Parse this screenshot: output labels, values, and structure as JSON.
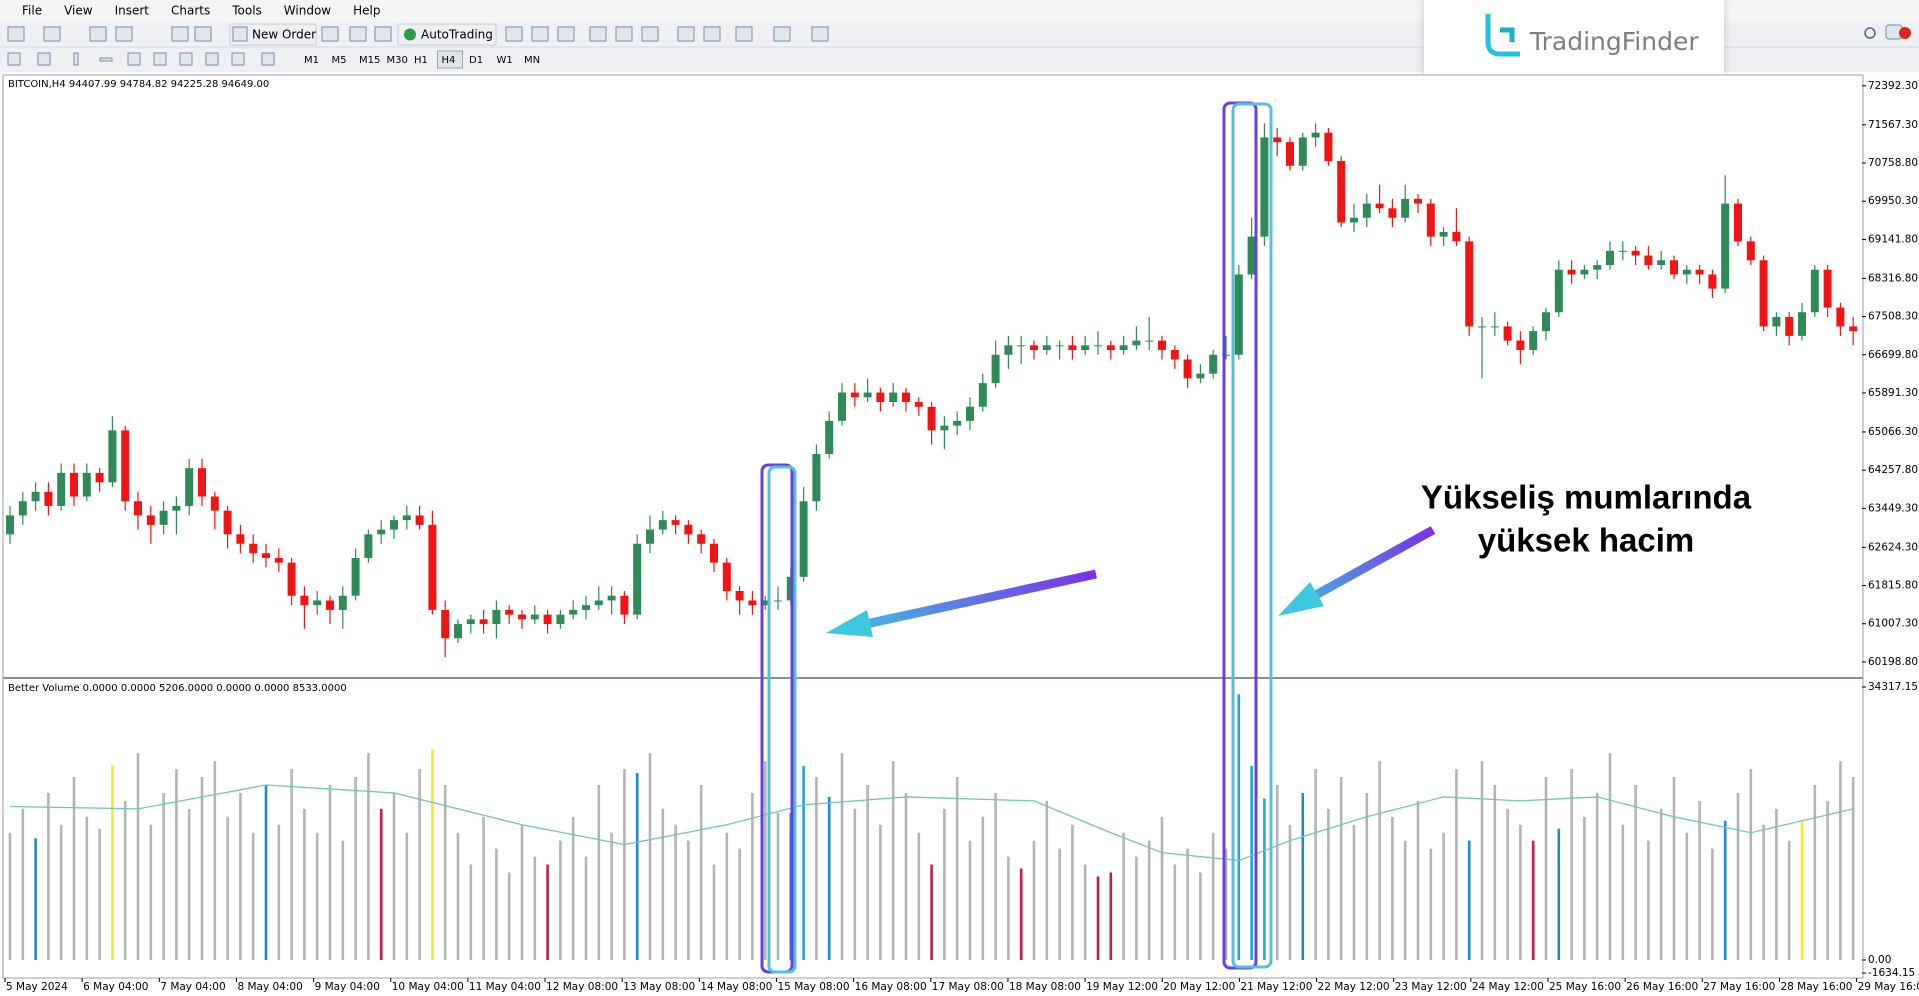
{
  "menu": [
    "File",
    "View",
    "Insert",
    "Charts",
    "Tools",
    "Window",
    "Help"
  ],
  "toolbar": {
    "new_order": "New Order",
    "auto_trading": "AutoTrading"
  },
  "timeframes": [
    "M1",
    "M5",
    "M15",
    "M30",
    "H1",
    "H4",
    "D1",
    "W1",
    "MN"
  ],
  "watermark": "TradingFinder",
  "chart_data": {
    "type": "candlestick",
    "title": "BITCOIN,H4  94407.99 94784.82 94225.28 94649.00",
    "up_color": "#2f8a57",
    "down_color": "#f01414",
    "ylim": [
      59880,
      72600
    ],
    "yticks": [
      {
        "value": 72392.3,
        "label": "72392.30"
      },
      {
        "value": 71567.3,
        "label": "71567.30"
      },
      {
        "value": 70758.8,
        "label": "70758.80"
      },
      {
        "value": 69950.3,
        "label": "69950.30"
      },
      {
        "value": 69141.8,
        "label": "69141.80"
      },
      {
        "value": 68316.8,
        "label": "68316.80"
      },
      {
        "value": 67508.3,
        "label": "67508.30"
      },
      {
        "value": 66699.8,
        "label": "66699.80"
      },
      {
        "value": 65891.3,
        "label": "65891.30"
      },
      {
        "value": 65066.3,
        "label": "65066.30"
      },
      {
        "value": 64257.8,
        "label": "64257.80"
      },
      {
        "value": 63449.3,
        "label": "63449.30"
      },
      {
        "value": 62624.3,
        "label": "62624.30"
      },
      {
        "value": 61815.8,
        "label": "61815.80"
      },
      {
        "value": 61007.3,
        "label": "61007.30"
      },
      {
        "value": 60198.8,
        "label": "60198.80"
      }
    ],
    "x_labels": [
      "5 May 2024",
      "6 May 04:00",
      "7 May 04:00",
      "8 May 04:00",
      "9 May 04:00",
      "10 May 04:00",
      "11 May 04:00",
      "12 May 08:00",
      "13 May 08:00",
      "14 May 08:00",
      "15 May 08:00",
      "16 May 08:00",
      "17 May 08:00",
      "18 May 08:00",
      "19 May 12:00",
      "20 May 12:00",
      "21 May 12:00",
      "22 May 12:00",
      "23 May 12:00",
      "24 May 12:00",
      "25 May 16:00",
      "26 May 16:00",
      "27 May 16:00",
      "28 May 16:00",
      "29 May 16:00"
    ],
    "candles": [
      [
        62900,
        63500,
        62700,
        63300
      ],
      [
        63300,
        63800,
        63100,
        63600
      ],
      [
        63600,
        64000,
        63400,
        63800
      ],
      [
        63800,
        64000,
        63300,
        63500
      ],
      [
        63500,
        64400,
        63400,
        64200
      ],
      [
        64200,
        64400,
        63500,
        63700
      ],
      [
        63700,
        64400,
        63600,
        64200
      ],
      [
        64200,
        64300,
        63800,
        64000
      ],
      [
        64000,
        65400,
        63900,
        65100
      ],
      [
        65100,
        65200,
        63400,
        63600
      ],
      [
        63600,
        63800,
        63000,
        63300
      ],
      [
        63300,
        63500,
        62700,
        63100
      ],
      [
        63100,
        63600,
        62900,
        63400
      ],
      [
        63400,
        63700,
        62900,
        63500
      ],
      [
        63500,
        64500,
        63300,
        64300
      ],
      [
        64300,
        64500,
        63500,
        63700
      ],
      [
        63700,
        63800,
        63000,
        63400
      ],
      [
        63400,
        63500,
        62600,
        62900
      ],
      [
        62900,
        63100,
        62500,
        62700
      ],
      [
        62700,
        62900,
        62300,
        62500
      ],
      [
        62500,
        62700,
        62200,
        62400
      ],
      [
        62400,
        62600,
        62100,
        62300
      ],
      [
        62300,
        62400,
        61400,
        61600
      ],
      [
        61600,
        61800,
        60900,
        61400
      ],
      [
        61400,
        61700,
        61200,
        61500
      ],
      [
        61500,
        61600,
        61000,
        61300
      ],
      [
        61300,
        61800,
        60900,
        61600
      ],
      [
        61600,
        62600,
        61500,
        62400
      ],
      [
        62400,
        63000,
        62300,
        62900
      ],
      [
        62900,
        63200,
        62700,
        63000
      ],
      [
        63000,
        63300,
        62800,
        63200
      ],
      [
        63200,
        63500,
        63000,
        63300
      ],
      [
        63300,
        63500,
        63000,
        63100
      ],
      [
        63100,
        63400,
        61200,
        61300
      ],
      [
        61300,
        61500,
        60300,
        60700
      ],
      [
        60700,
        61100,
        60600,
        61000
      ],
      [
        61000,
        61200,
        60800,
        61100
      ],
      [
        61100,
        61300,
        60800,
        61000
      ],
      [
        61000,
        61500,
        60700,
        61300
      ],
      [
        61300,
        61400,
        61000,
        61200
      ],
      [
        61200,
        61300,
        60900,
        61100
      ],
      [
        61100,
        61400,
        61000,
        61200
      ],
      [
        61200,
        61300,
        60800,
        61000
      ],
      [
        61000,
        61300,
        60900,
        61200
      ],
      [
        61200,
        61500,
        61100,
        61300
      ],
      [
        61300,
        61600,
        61100,
        61400
      ],
      [
        61400,
        61800,
        61300,
        61500
      ],
      [
        61500,
        61800,
        61200,
        61600
      ],
      [
        61600,
        61700,
        61000,
        61200
      ],
      [
        61200,
        62900,
        61100,
        62700
      ],
      [
        62700,
        63300,
        62500,
        63000
      ],
      [
        63000,
        63400,
        62900,
        63200
      ],
      [
        63200,
        63300,
        62900,
        63100
      ],
      [
        63100,
        63200,
        62700,
        62900
      ],
      [
        62900,
        63000,
        62500,
        62700
      ],
      [
        62700,
        62800,
        62100,
        62300
      ],
      [
        62300,
        62400,
        61500,
        61700
      ],
      [
        61700,
        61800,
        61200,
        61500
      ],
      [
        61500,
        61700,
        61200,
        61400
      ],
      [
        61400,
        61600,
        61300,
        61500
      ],
      [
        61500,
        61800,
        61300,
        61500
      ],
      [
        61500,
        62200,
        61400,
        62000
      ],
      [
        62000,
        63900,
        61900,
        63600
      ],
      [
        63600,
        64800,
        63400,
        64600
      ],
      [
        64600,
        65500,
        64500,
        65300
      ],
      [
        65300,
        66100,
        65200,
        65900
      ],
      [
        65900,
        66100,
        65600,
        65800
      ],
      [
        65800,
        66200,
        65700,
        65900
      ],
      [
        65900,
        66000,
        65500,
        65700
      ],
      [
        65700,
        66100,
        65600,
        65900
      ],
      [
        65900,
        66000,
        65500,
        65700
      ],
      [
        65700,
        65800,
        65400,
        65600
      ],
      [
        65600,
        65700,
        64800,
        65100
      ],
      [
        65100,
        65400,
        64700,
        65200
      ],
      [
        65200,
        65500,
        65000,
        65300
      ],
      [
        65300,
        65800,
        65100,
        65600
      ],
      [
        65600,
        66300,
        65500,
        66100
      ],
      [
        66100,
        67000,
        66000,
        66700
      ],
      [
        66700,
        67100,
        66400,
        66900
      ],
      [
        66900,
        67100,
        66500,
        66900
      ],
      [
        66900,
        67000,
        66600,
        66800
      ],
      [
        66800,
        67100,
        66700,
        66900
      ],
      [
        66900,
        67000,
        66600,
        66900
      ],
      [
        66900,
        67100,
        66600,
        66800
      ],
      [
        66800,
        67100,
        66700,
        66900
      ],
      [
        66900,
        67200,
        66700,
        66900
      ],
      [
        66900,
        67000,
        66600,
        66800
      ],
      [
        66800,
        67100,
        66700,
        66900
      ],
      [
        66900,
        67300,
        66800,
        67000
      ],
      [
        67000,
        67500,
        66800,
        67000
      ],
      [
        67000,
        67100,
        66600,
        66800
      ],
      [
        66800,
        66900,
        66400,
        66600
      ],
      [
        66600,
        66700,
        66000,
        66200
      ],
      [
        66200,
        66500,
        66100,
        66300
      ],
      [
        66300,
        66800,
        66200,
        66700
      ],
      [
        66700,
        67100,
        66600,
        66700
      ],
      [
        66700,
        68600,
        66600,
        68400
      ],
      [
        68400,
        69600,
        68300,
        69200
      ],
      [
        69200,
        71600,
        69000,
        71300
      ],
      [
        71300,
        71500,
        70900,
        71200
      ],
      [
        71200,
        71300,
        70600,
        70700
      ],
      [
        70700,
        71400,
        70600,
        71300
      ],
      [
        71300,
        71600,
        71100,
        71400
      ],
      [
        71400,
        71500,
        70700,
        70800
      ],
      [
        70800,
        70900,
        69400,
        69500
      ],
      [
        69500,
        69900,
        69300,
        69600
      ],
      [
        69600,
        70100,
        69400,
        69900
      ],
      [
        69900,
        70300,
        69700,
        69800
      ],
      [
        69800,
        70000,
        69400,
        69600
      ],
      [
        69600,
        70300,
        69500,
        70000
      ],
      [
        70000,
        70100,
        69700,
        69900
      ],
      [
        69900,
        70000,
        69000,
        69200
      ],
      [
        69200,
        69400,
        69000,
        69300
      ],
      [
        69300,
        69800,
        69000,
        69100
      ],
      [
        69100,
        69200,
        67100,
        67300
      ],
      [
        67300,
        67500,
        66200,
        67300
      ],
      [
        67300,
        67600,
        67100,
        67300
      ],
      [
        67300,
        67400,
        66900,
        67000
      ],
      [
        67000,
        67200,
        66500,
        66800
      ],
      [
        66800,
        67300,
        66700,
        67200
      ],
      [
        67200,
        67700,
        67000,
        67600
      ],
      [
        67600,
        68700,
        67500,
        68500
      ],
      [
        68500,
        68700,
        68200,
        68400
      ],
      [
        68400,
        68600,
        68300,
        68500
      ],
      [
        68500,
        68700,
        68300,
        68600
      ],
      [
        68600,
        69100,
        68500,
        68900
      ],
      [
        68900,
        69100,
        68700,
        68900
      ],
      [
        68900,
        69000,
        68600,
        68800
      ],
      [
        68800,
        69000,
        68500,
        68600
      ],
      [
        68600,
        68900,
        68500,
        68700
      ],
      [
        68700,
        68800,
        68300,
        68400
      ],
      [
        68400,
        68600,
        68200,
        68500
      ],
      [
        68500,
        68600,
        68200,
        68400
      ],
      [
        68400,
        68500,
        67900,
        68100
      ],
      [
        68100,
        70500,
        68000,
        69900
      ],
      [
        69900,
        70000,
        69000,
        69100
      ],
      [
        69100,
        69200,
        68600,
        68700
      ],
      [
        68700,
        68800,
        67200,
        67300
      ],
      [
        67300,
        67600,
        67100,
        67500
      ],
      [
        67500,
        67600,
        66900,
        67100
      ],
      [
        67100,
        67800,
        67000,
        67600
      ],
      [
        67600,
        68600,
        67500,
        68500
      ],
      [
        68500,
        68600,
        67500,
        67700
      ],
      [
        67700,
        67800,
        67100,
        67300
      ],
      [
        67300,
        67500,
        66900,
        67200
      ]
    ],
    "indicator": {
      "title": "Better Volume 0.0000 0.0000 5206.0000 0.0000 0.0000 8533.0000",
      "ylim": [
        -1634.15,
        34317.15
      ],
      "yticks": [
        {
          "value": 34317.15,
          "label": "34317.15"
        },
        {
          "value": 0,
          "label": "0.00"
        },
        {
          "value": -1634.15,
          "label": "-1634.15"
        }
      ],
      "values": [
        16000,
        19000,
        15300,
        21000,
        17000,
        23000,
        18000,
        16500,
        24500,
        20000,
        26000,
        17000,
        21000,
        24000,
        19000,
        23000,
        25000,
        18000,
        21000,
        16000,
        22000,
        17000,
        24000,
        19000,
        16000,
        22000,
        15000,
        23000,
        26000,
        19000,
        21000,
        16000,
        24000,
        26500,
        22000,
        16000,
        12000,
        18000,
        14000,
        11000,
        17000,
        13000,
        12000,
        15000,
        18000,
        13000,
        22000,
        16000,
        24000,
        23500,
        26000,
        19000,
        17000,
        15000,
        22000,
        12000,
        16000,
        14000,
        21000,
        25000,
        18500,
        18500,
        24400,
        23000,
        20500,
        26000,
        19000,
        22000,
        17000,
        25000,
        21000,
        16000,
        12000,
        19000,
        23000,
        15000,
        18000,
        21000,
        13000,
        11500,
        15000,
        20000,
        14000,
        17000,
        12000,
        10500,
        11000,
        16000,
        13000,
        15000,
        18000,
        12000,
        14000,
        11000,
        16000,
        14000,
        33400,
        24400,
        20300,
        22000,
        17000,
        21000,
        24000,
        19000,
        23000,
        17000,
        21000,
        25000,
        18000,
        15000,
        20000,
        14000,
        16000,
        24000,
        15000,
        25000,
        22000,
        19000,
        17000,
        15000,
        23000,
        16500,
        24000,
        18000,
        21000,
        26000,
        17000,
        22000,
        15000,
        19000,
        23000,
        16000,
        20000,
        14000,
        17500,
        21000,
        24000,
        17000,
        19000,
        15000,
        17500,
        22000,
        20000,
        25000,
        23000
      ],
      "colors": [
        "#b4b4b4",
        "#b4b4b4",
        "#1e88d0",
        "#b4b4b4",
        "#b4b4b4",
        "#b4b4b4",
        "#b4b4b4",
        "#b4b4b4",
        "#f2ee1e",
        "#b4b4b4",
        "#b4b4b4",
        "#b4b4b4",
        "#b4b4b4",
        "#b4b4b4",
        "#b4b4b4",
        "#b4b4b4",
        "#b4b4b4",
        "#b4b4b4",
        "#b4b4b4",
        "#b4b4b4",
        "#1e88d0",
        "#b4b4b4",
        "#b4b4b4",
        "#b4b4b4",
        "#b4b4b4",
        "#b4b4b4",
        "#b4b4b4",
        "#b4b4b4",
        "#b4b4b4",
        "#c41e46",
        "#b4b4b4",
        "#b4b4b4",
        "#b4b4b4",
        "#f2ee1e",
        "#b4b4b4",
        "#b4b4b4",
        "#b4b4b4",
        "#b4b4b4",
        "#b4b4b4",
        "#b4b4b4",
        "#b4b4b4",
        "#b4b4b4",
        "#c41e46",
        "#b4b4b4",
        "#b4b4b4",
        "#b4b4b4",
        "#b4b4b4",
        "#b4b4b4",
        "#b4b4b4",
        "#1e88d0",
        "#b4b4b4",
        "#b4b4b4",
        "#b4b4b4",
        "#b4b4b4",
        "#b4b4b4",
        "#b4b4b4",
        "#b4b4b4",
        "#b4b4b4",
        "#b4b4b4",
        "#b4b4b4",
        "#b4b4b4",
        "#1e88d0",
        "#1ea4dc",
        "#b4b4b4",
        "#1e88d0",
        "#b4b4b4",
        "#b4b4b4",
        "#b4b4b4",
        "#b4b4b4",
        "#b4b4b4",
        "#b4b4b4",
        "#b4b4b4",
        "#c41e46",
        "#b4b4b4",
        "#b4b4b4",
        "#b4b4b4",
        "#b4b4b4",
        "#b4b4b4",
        "#b4b4b4",
        "#c41e46",
        "#b4b4b4",
        "#b4b4b4",
        "#b4b4b4",
        "#b4b4b4",
        "#b4b4b4",
        "#c41e46",
        "#c41e46",
        "#b4b4b4",
        "#b4b4b4",
        "#b4b4b4",
        "#b4b4b4",
        "#b4b4b4",
        "#b4b4b4",
        "#b4b4b4",
        "#b4b4b4",
        "#b4b4b4",
        "#1ea4dc",
        "#1ea4dc",
        "#1ea4dc",
        "#b4b4b4",
        "#b4b4b4",
        "#1e88d0",
        "#b4b4b4",
        "#b4b4b4",
        "#b4b4b4",
        "#b4b4b4",
        "#b4b4b4",
        "#b4b4b4",
        "#b4b4b4",
        "#b4b4b4",
        "#b4b4b4",
        "#b4b4b4",
        "#b4b4b4",
        "#b4b4b4",
        "#1e88d0",
        "#b4b4b4",
        "#b4b4b4",
        "#b4b4b4",
        "#b4b4b4",
        "#c41e46",
        "#b4b4b4",
        "#1e88d0",
        "#b4b4b4",
        "#b4b4b4",
        "#b4b4b4",
        "#b4b4b4",
        "#b4b4b4",
        "#b4b4b4",
        "#b4b4b4",
        "#b4b4b4",
        "#b4b4b4",
        "#b4b4b4",
        "#b4b4b4",
        "#b4b4b4",
        "#1e88d0",
        "#b4b4b4",
        "#b4b4b4",
        "#b4b4b4",
        "#b4b4b4",
        "#b4b4b4",
        "#f2ee1e",
        "#b4b4b4",
        "#b4b4b4",
        "#b4b4b4",
        "#b4b4b4"
      ],
      "ma": {
        "color": "#72c6b2",
        "x": [
          0,
          10,
          20,
          30,
          40,
          48,
          56,
          62,
          70,
          80,
          86,
          90,
          96,
          100,
          106,
          112,
          118,
          124,
          130,
          136,
          144
        ],
        "values": [
          19300,
          19000,
          22000,
          21000,
          17000,
          14500,
          17000,
          19500,
          20500,
          20000,
          16000,
          13500,
          12500,
          15000,
          18000,
          20500,
          20000,
          20500,
          18000,
          16000,
          19000
        ]
      }
    },
    "annotation": [
      "Yükseliş mumlarında",
      "yüksek hacim"
    ]
  }
}
